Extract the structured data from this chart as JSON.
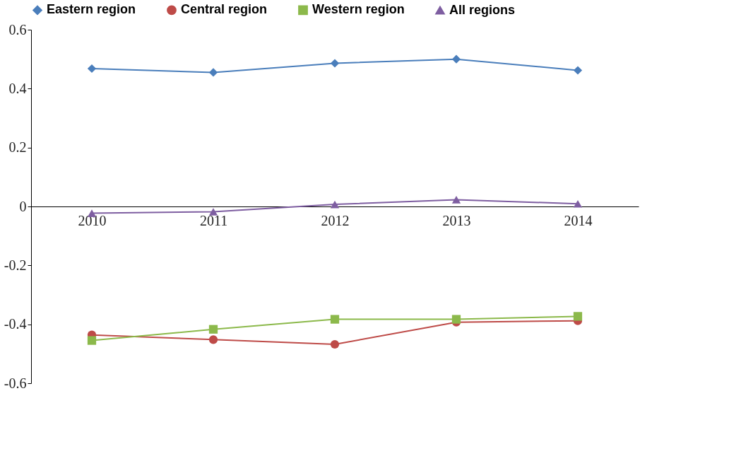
{
  "chart_data": {
    "type": "line",
    "categories": [
      "2010",
      "2011",
      "2012",
      "2013",
      "2014"
    ],
    "series": [
      {
        "name": "Eastern region",
        "color": "#4a7ebb",
        "marker": "diamond",
        "values": [
          0.468,
          0.455,
          0.486,
          0.5,
          0.462
        ]
      },
      {
        "name": "Central region",
        "color": "#be4b48",
        "marker": "circle",
        "values": [
          -0.436,
          -0.452,
          -0.468,
          -0.393,
          -0.388
        ]
      },
      {
        "name": "Western region",
        "color": "#8cb94b",
        "marker": "square",
        "values": [
          -0.455,
          -0.417,
          -0.383,
          -0.383,
          -0.373
        ]
      },
      {
        "name": "All regions",
        "color": "#7e5ea1",
        "marker": "triangle",
        "values": [
          -0.023,
          -0.018,
          0.007,
          0.023,
          0.009
        ]
      }
    ],
    "ylim": [
      -0.6,
      0.6
    ],
    "yticks": [
      -0.6,
      -0.4,
      -0.2,
      0,
      0.2,
      0.4,
      0.6
    ],
    "grid": false,
    "legend": "top",
    "line_style": "solid"
  }
}
